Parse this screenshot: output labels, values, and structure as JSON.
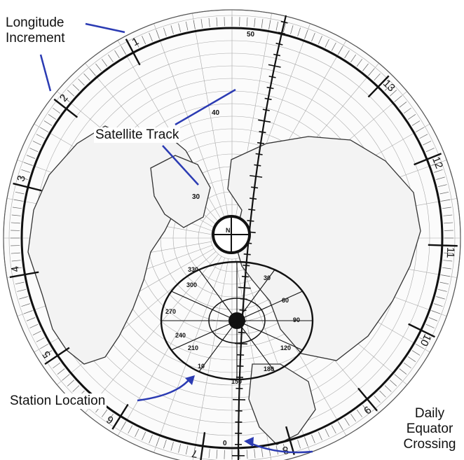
{
  "callouts": {
    "longitude_increment": [
      "Longitude",
      "Increment"
    ],
    "satellite_track": "Satellite Track",
    "station_location": "Station Location",
    "daily_equator_crossing": [
      "Daily",
      "Equator",
      "Crossing"
    ]
  },
  "rim_numbers": [
    "1",
    "2",
    "3",
    "4",
    "5",
    "6",
    "7",
    "8",
    "9",
    "10",
    "11",
    "12",
    "13"
  ],
  "track_latitudes": [
    "50",
    "40",
    "30",
    "0"
  ],
  "overlay_numbers": [
    "330",
    "300",
    "270",
    "240",
    "210",
    "180",
    "150",
    "120",
    "90",
    "60",
    "30",
    "10",
    "N"
  ],
  "colors": {
    "callout_line": "#2b3bb3",
    "ink": "#111111",
    "grid": "#9a9a9a"
  }
}
